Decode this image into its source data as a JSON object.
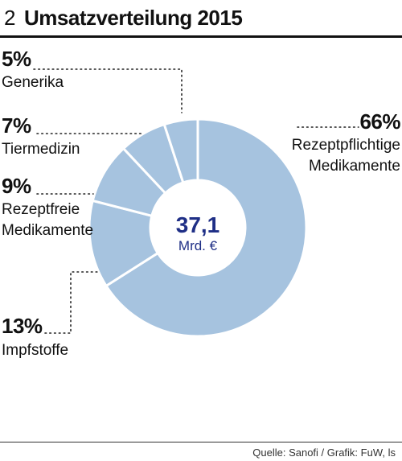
{
  "header": {
    "number": "2",
    "title": "Umsatzverteilung 2015"
  },
  "footer": {
    "source": "Quelle: Sanofi / Grafik: FuW, ls"
  },
  "chart_data": {
    "type": "pie",
    "title": "Umsatzverteilung 2015",
    "center_value": "37,1",
    "center_unit": "Mrd. €",
    "slice_color": "#a6c3df",
    "separator_color": "#ffffff",
    "center_text_color": "#1f2f86",
    "slices": [
      {
        "name_lines": [
          "Rezeptpflichtige",
          "Medikamente"
        ],
        "value": 66,
        "label": "66%"
      },
      {
        "name_lines": [
          "Impfstoffe"
        ],
        "value": 13,
        "label": "13%"
      },
      {
        "name_lines": [
          "Rezeptfreie",
          "Medikamente"
        ],
        "value": 9,
        "label": "9%"
      },
      {
        "name_lines": [
          "Tiermedizin"
        ],
        "value": 7,
        "label": "7%"
      },
      {
        "name_lines": [
          "Generika"
        ],
        "value": 5,
        "label": "5%"
      }
    ]
  }
}
